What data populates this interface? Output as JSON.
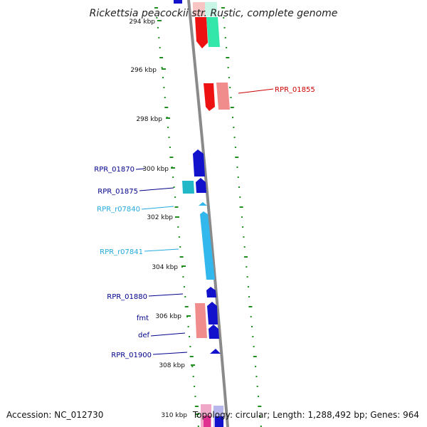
{
  "title": "Rickettsia peacockii str. Rustic, complete genome",
  "footer": {
    "accession": "Accession: NC_012730",
    "summary": "Topology: circular; Length: 1,288,492 bp; Genes: 964"
  },
  "colors": {
    "backbone": "#8a8a8a",
    "tick": "#1f8f1f",
    "gene_blue": "#1212cc",
    "gene_red": "#ee1111",
    "gene_pink": "#f08c8c",
    "gene_cyan": "#22b8c8",
    "gene_sky": "#33b8ee",
    "gene_mint": "#33e6aa",
    "label_blue": "#00008b",
    "label_red": "#cc0000",
    "label_sky": "#22aadd"
  },
  "ticks": [
    {
      "label": "294 kbp"
    },
    {
      "label": "296 kbp"
    },
    {
      "label": "298 kbp"
    },
    {
      "label": "300 kbp"
    },
    {
      "label": "302 kbp"
    },
    {
      "label": "304 kbp"
    },
    {
      "label": "306 kbp"
    },
    {
      "label": "308 kbp"
    },
    {
      "label": "310 kbp"
    }
  ],
  "gene_labels": [
    {
      "text": "RPR_01855",
      "color": "label_red"
    },
    {
      "text": "RPR_01870",
      "color": "label_blue"
    },
    {
      "text": "RPR_01875",
      "color": "label_blue"
    },
    {
      "text": "RPR_r07840",
      "color": "label_sky"
    },
    {
      "text": "RPR_r07841",
      "color": "label_sky"
    },
    {
      "text": "RPR_01880",
      "color": "label_blue"
    },
    {
      "text": "fmt",
      "color": "label_blue"
    },
    {
      "text": "def",
      "color": "label_blue"
    },
    {
      "text": "RPR_01900",
      "color": "label_blue"
    }
  ]
}
